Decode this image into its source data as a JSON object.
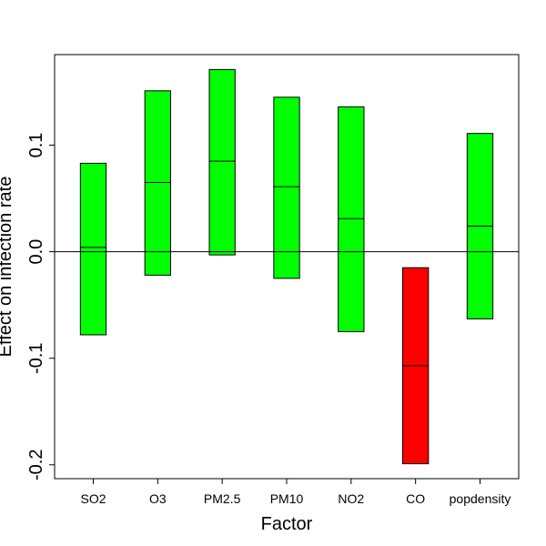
{
  "chart_data": {
    "type": "bar",
    "title": "",
    "xlabel": "Factor",
    "ylabel": "Effect on infection rate",
    "categories": [
      "SO2",
      "O3",
      "PM2.5",
      "PM10",
      "NO2",
      "CO",
      "popdensity"
    ],
    "lower": [
      -0.078,
      -0.022,
      -0.003,
      -0.025,
      -0.075,
      -0.199,
      -0.063
    ],
    "median": [
      0.004,
      0.065,
      0.085,
      0.061,
      0.031,
      -0.107,
      0.024
    ],
    "upper": [
      0.083,
      0.151,
      0.171,
      0.145,
      0.136,
      -0.015,
      0.111
    ],
    "colors": [
      "#00ff00",
      "#00ff00",
      "#00ff00",
      "#00ff00",
      "#00ff00",
      "#ff0000",
      "#00ff00"
    ],
    "ylim": [
      -0.213,
      0.185
    ],
    "yticks": [
      -0.2,
      -0.1,
      0.0,
      0.1
    ],
    "ytick_labels": [
      "-0.2",
      "-0.1",
      "0.0",
      "0.1"
    ],
    "reference_line": 0,
    "grid": false,
    "legend": "none"
  }
}
